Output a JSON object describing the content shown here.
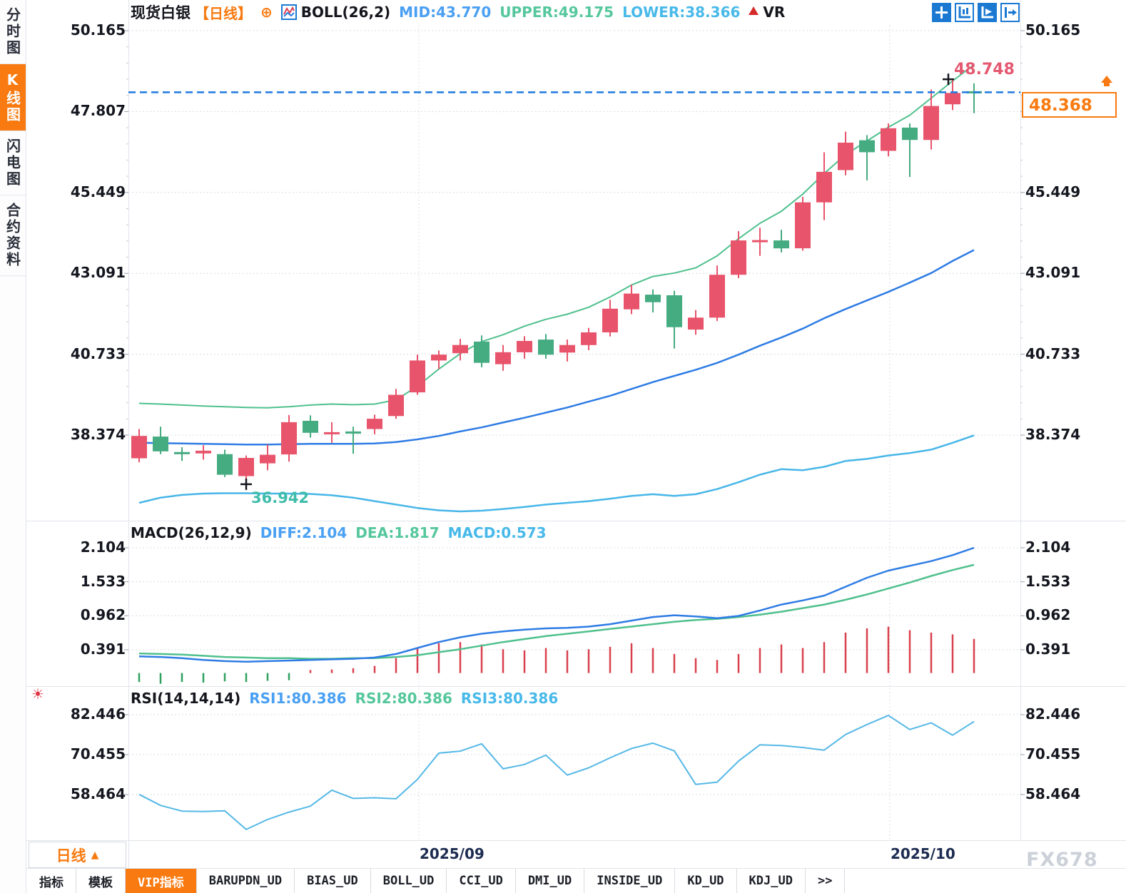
{
  "main_header": {
    "symbol": "现货白银",
    "period": "【日线】",
    "indicator": "BOLL(26,2)",
    "mid": "MID:43.770",
    "upper": "UPPER:49.175",
    "lower": "LOWER:38.366",
    "vr": "VR"
  },
  "macd_header": {
    "title": "MACD(26,12,9)",
    "diff": "DIFF:2.104",
    "dea": "DEA:1.817",
    "macd": "MACD:0.573"
  },
  "rsi_header": {
    "title": "RSI(14,14,14)",
    "rsi1": "RSI1:80.386",
    "rsi2": "RSI2:80.386",
    "rsi3": "RSI3:80.386"
  },
  "sidebar": {
    "items": [
      {
        "id": "time-chart",
        "label": "分时图",
        "active": false
      },
      {
        "id": "kline-chart",
        "label": "K线图",
        "active": true
      },
      {
        "id": "flash-chart",
        "label": "闪电图",
        "active": false
      },
      {
        "id": "contract-info",
        "label": "合约资料",
        "active": false
      }
    ]
  },
  "axes": {
    "price": [
      "50.165",
      "47.807",
      "45.449",
      "43.091",
      "40.733",
      "38.374"
    ],
    "macd": [
      "2.104",
      "1.533",
      "0.962",
      "0.391"
    ],
    "rsi": [
      "82.446",
      "70.455",
      "58.464"
    ],
    "x": [
      "2025/09",
      "2025/10"
    ]
  },
  "markers": {
    "high": "48.748",
    "low": "36.942",
    "last": "48.368"
  },
  "period_box": {
    "label": "日线",
    "arrow": "▲"
  },
  "watermark": "FX678",
  "toolbar_icons": [
    "pan-icon",
    "axis-zoom-icon",
    "axis-play-icon",
    "exit-panel-icon"
  ],
  "tabs": [
    {
      "id": "indicators",
      "label": "指标",
      "active": false
    },
    {
      "id": "templates",
      "label": "模板",
      "active": false
    },
    {
      "id": "vip",
      "label": "VIP指标",
      "active": true
    },
    {
      "id": "barupdn",
      "label": "BARUPDN_UD",
      "active": false
    },
    {
      "id": "bias",
      "label": "BIAS_UD",
      "active": false
    },
    {
      "id": "boll",
      "label": "BOLL_UD",
      "active": false
    },
    {
      "id": "cci",
      "label": "CCI_UD",
      "active": false
    },
    {
      "id": "dmi",
      "label": "DMI_UD",
      "active": false
    },
    {
      "id": "inside",
      "label": "INSIDE_UD",
      "active": false
    },
    {
      "id": "kd",
      "label": "KD_UD",
      "active": false
    },
    {
      "id": "kdj",
      "label": "KDJ_UD",
      "active": false
    },
    {
      "id": "more",
      "label": ">>",
      "active": false
    }
  ],
  "colors": {
    "accent": "#f87a10",
    "up": "#e8546b",
    "down": "#45ab80",
    "upper_band": "#4fc08d",
    "mid_band": "#2e7ce4",
    "lower_band": "#47b6e8",
    "diff_line": "#2e7ce4",
    "dea_line": "#4fc08d",
    "hist_up": "#d9404e",
    "hist_down": "#2ea05e",
    "rsi_line": "#55b8e6",
    "dash_line": "#1f7ae0",
    "text_blue": "#4aa0f2",
    "text_green": "#55c79c",
    "text_cyan": "#48b9e9",
    "grid": "#d9dce4",
    "separator": "#e2e4ea"
  },
  "chart_data": [
    {
      "type": "candlestick",
      "title": "现货白银 日线 BOLL(26,2)",
      "ylim": [
        36.1,
        50.4
      ],
      "y_ticks": [
        50.165,
        47.807,
        45.449,
        43.091,
        40.733,
        38.374
      ],
      "x_month_ticks": [
        "2025/09",
        "2025/10"
      ],
      "last_price": 48.368,
      "high_marker": 48.748,
      "low_marker": 36.942,
      "boll_last": {
        "mid": 43.77,
        "upper": 49.175,
        "lower": 38.366
      },
      "candles": [
        [
          37.7,
          38.55,
          37.58,
          38.35
        ],
        [
          38.33,
          38.62,
          37.82,
          37.9
        ],
        [
          37.88,
          38.02,
          37.62,
          37.84
        ],
        [
          37.84,
          38.08,
          37.66,
          37.92
        ],
        [
          37.82,
          37.95,
          37.15,
          37.22
        ],
        [
          37.18,
          37.78,
          36.942,
          37.71
        ],
        [
          37.55,
          38.1,
          37.35,
          37.8
        ],
        [
          37.81,
          38.96,
          37.6,
          38.75
        ],
        [
          38.79,
          38.95,
          38.3,
          38.44
        ],
        [
          38.42,
          38.75,
          38.15,
          38.46
        ],
        [
          38.48,
          38.62,
          37.83,
          38.42
        ],
        [
          38.55,
          38.97,
          38.4,
          38.85
        ],
        [
          38.93,
          39.72,
          38.85,
          39.55
        ],
        [
          39.62,
          40.72,
          39.55,
          40.55
        ],
        [
          40.55,
          40.84,
          40.3,
          40.72
        ],
        [
          40.76,
          41.18,
          40.55,
          41.0
        ],
        [
          41.1,
          41.28,
          40.35,
          40.48
        ],
        [
          40.44,
          41.0,
          40.25,
          40.79
        ],
        [
          40.79,
          41.26,
          40.6,
          41.12
        ],
        [
          41.16,
          41.32,
          40.6,
          40.72
        ],
        [
          40.78,
          41.16,
          40.52,
          41.0
        ],
        [
          41.0,
          41.5,
          40.85,
          41.37
        ],
        [
          41.37,
          42.32,
          41.25,
          42.06
        ],
        [
          42.04,
          42.76,
          41.9,
          42.5
        ],
        [
          42.47,
          42.62,
          41.95,
          42.25
        ],
        [
          42.45,
          42.58,
          40.9,
          41.52
        ],
        [
          41.45,
          42.02,
          41.3,
          41.8
        ],
        [
          41.8,
          43.32,
          41.7,
          43.05
        ],
        [
          43.05,
          44.32,
          42.95,
          44.05
        ],
        [
          44.0,
          44.42,
          43.6,
          44.06
        ],
        [
          44.05,
          44.36,
          43.7,
          43.82
        ],
        [
          43.82,
          45.32,
          43.75,
          45.16
        ],
        [
          45.16,
          46.62,
          44.64,
          46.05
        ],
        [
          46.1,
          47.22,
          45.95,
          46.9
        ],
        [
          46.97,
          47.12,
          45.8,
          46.62
        ],
        [
          46.66,
          47.46,
          46.5,
          47.32
        ],
        [
          47.34,
          47.46,
          45.9,
          46.98
        ],
        [
          46.98,
          48.45,
          46.7,
          47.97
        ],
        [
          48.02,
          48.748,
          47.85,
          48.35
        ],
        [
          48.4,
          48.63,
          47.76,
          48.368
        ]
      ],
      "boll_upper": [
        39.3,
        39.28,
        39.25,
        39.22,
        39.2,
        39.18,
        39.17,
        39.2,
        39.25,
        39.28,
        39.26,
        39.28,
        39.4,
        39.8,
        40.3,
        40.75,
        41.1,
        41.3,
        41.55,
        41.75,
        41.9,
        42.1,
        42.4,
        42.75,
        43.0,
        43.1,
        43.25,
        43.6,
        44.1,
        44.55,
        44.9,
        45.4,
        46.0,
        46.55,
        46.95,
        47.35,
        47.7,
        48.2,
        48.7,
        49.175
      ],
      "boll_mid": [
        38.15,
        38.14,
        38.13,
        38.12,
        38.11,
        38.1,
        38.1,
        38.11,
        38.12,
        38.12,
        38.12,
        38.13,
        38.17,
        38.25,
        38.35,
        38.48,
        38.6,
        38.74,
        38.88,
        39.03,
        39.18,
        39.35,
        39.52,
        39.72,
        39.92,
        40.1,
        40.28,
        40.48,
        40.72,
        40.98,
        41.22,
        41.48,
        41.78,
        42.05,
        42.3,
        42.55,
        42.82,
        43.1,
        43.45,
        43.77
      ],
      "boll_lower": [
        36.4,
        36.55,
        36.63,
        36.67,
        36.68,
        36.68,
        36.67,
        36.67,
        36.66,
        36.62,
        36.55,
        36.45,
        36.35,
        36.25,
        36.18,
        36.15,
        36.17,
        36.22,
        36.28,
        36.35,
        36.4,
        36.45,
        36.52,
        36.6,
        36.65,
        36.6,
        36.65,
        36.8,
        37.0,
        37.22,
        37.38,
        37.35,
        37.45,
        37.62,
        37.68,
        37.78,
        37.85,
        37.95,
        38.15,
        38.366
      ]
    },
    {
      "type": "macd",
      "title": "MACD(26,12,9)",
      "y_ticks": [
        2.104,
        1.533,
        0.962,
        0.391
      ],
      "diff": [
        0.28,
        0.27,
        0.25,
        0.22,
        0.2,
        0.19,
        0.2,
        0.21,
        0.22,
        0.23,
        0.24,
        0.26,
        0.32,
        0.42,
        0.52,
        0.6,
        0.66,
        0.7,
        0.73,
        0.75,
        0.76,
        0.78,
        0.82,
        0.88,
        0.94,
        0.97,
        0.95,
        0.92,
        0.96,
        1.05,
        1.15,
        1.22,
        1.3,
        1.45,
        1.6,
        1.72,
        1.8,
        1.88,
        1.98,
        2.104
      ],
      "dea": [
        0.33,
        0.32,
        0.31,
        0.29,
        0.27,
        0.26,
        0.25,
        0.25,
        0.24,
        0.24,
        0.25,
        0.25,
        0.27,
        0.3,
        0.35,
        0.4,
        0.46,
        0.52,
        0.57,
        0.62,
        0.66,
        0.7,
        0.74,
        0.78,
        0.82,
        0.86,
        0.89,
        0.91,
        0.94,
        0.98,
        1.03,
        1.09,
        1.15,
        1.23,
        1.32,
        1.42,
        1.52,
        1.63,
        1.73,
        1.817
      ],
      "hist": [
        -0.15,
        -0.18,
        -0.15,
        -0.16,
        -0.14,
        -0.15,
        -0.13,
        -0.12,
        0.05,
        0.06,
        0.08,
        0.12,
        0.25,
        0.42,
        0.5,
        0.52,
        0.48,
        0.4,
        0.38,
        0.42,
        0.38,
        0.4,
        0.44,
        0.5,
        0.42,
        0.32,
        0.25,
        0.22,
        0.32,
        0.42,
        0.48,
        0.42,
        0.52,
        0.68,
        0.75,
        0.78,
        0.72,
        0.68,
        0.65,
        0.573
      ]
    },
    {
      "type": "line",
      "title": "RSI(14,14,14)",
      "y_ticks": [
        82.446,
        70.455,
        58.464
      ],
      "rsi": [
        58.5,
        55.2,
        53.5,
        53.4,
        53.6,
        48.0,
        51.0,
        53.2,
        55.0,
        59.8,
        57.3,
        57.5,
        57.2,
        63.0,
        70.9,
        71.5,
        73.7,
        66.2,
        67.5,
        70.3,
        64.3,
        66.5,
        69.5,
        72.3,
        73.9,
        71.6,
        61.5,
        62.2,
        68.5,
        73.4,
        73.2,
        72.6,
        71.8,
        76.5,
        79.5,
        82.2,
        78.0,
        80.0,
        76.3,
        80.4
      ]
    }
  ]
}
